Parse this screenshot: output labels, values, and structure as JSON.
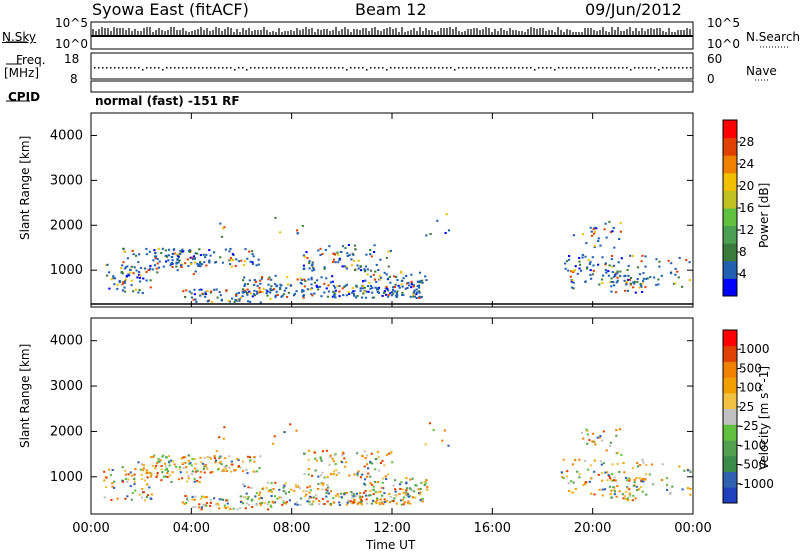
{
  "header": {
    "station": "Syowa East (fitACF)",
    "beam": "Beam 12",
    "date": "09/Jun/2012"
  },
  "summary_panels": {
    "nsky_label": "N.Sky",
    "nsky_ticks": [
      "10^5",
      "10^0"
    ],
    "nsearch_label": "N.Search",
    "nsearch_ticks": [
      "10^5",
      "10^0"
    ],
    "freq_label": "Freq.",
    "freq_unit": "[MHz]",
    "freq_ticks": [
      "18",
      "8"
    ],
    "nave_label": "Nave",
    "nave_ticks": [
      "60",
      "0"
    ],
    "cpid_label": "CPID",
    "cpid_value": "normal (fast) -151 RF"
  },
  "chart_data": [
    {
      "type": "heatmap",
      "name": "Power",
      "ylabel": "Slant Range [km]",
      "yticks": [
        "4000",
        "3000",
        "2000",
        "1000"
      ],
      "ylim": [
        180,
        4500
      ],
      "colorbar_label": "Power [dB]",
      "colorbar_ticks": [
        "28",
        "24",
        "20",
        "16",
        "12",
        "8",
        "4"
      ],
      "colorbar_colors": [
        "#0000ff",
        "#2060b0",
        "#3a7a3a",
        "#4aa050",
        "#60c040",
        "#c0c020",
        "#f0c000",
        "#f08000",
        "#e04000",
        "#ff0000"
      ],
      "xticks": [
        "00:00",
        "04:00",
        "08:00",
        "12:00",
        "16:00",
        "20:00",
        "00:00"
      ]
    },
    {
      "type": "heatmap",
      "name": "Velocity",
      "ylabel": "Slant Range [km]",
      "yticks": [
        "4000",
        "3000",
        "2000",
        "1000"
      ],
      "ylim": [
        180,
        4500
      ],
      "colorbar_label": "Velocity [m s^-1]",
      "colorbar_ticks": [
        "1000",
        "500",
        "100",
        "25",
        "-25",
        "-100",
        "-500",
        "-1000"
      ],
      "colorbar_colors": [
        "#2040c0",
        "#3060b0",
        "#3a8a4a",
        "#50a050",
        "#60c040",
        "#c0c0c0",
        "#f0c040",
        "#f0a000",
        "#f08000",
        "#e04000",
        "#ff0000"
      ],
      "xticks": [
        "00:00",
        "04:00",
        "08:00",
        "12:00",
        "16:00",
        "20:00",
        "00:00"
      ],
      "xlabel": "Time UT"
    }
  ]
}
